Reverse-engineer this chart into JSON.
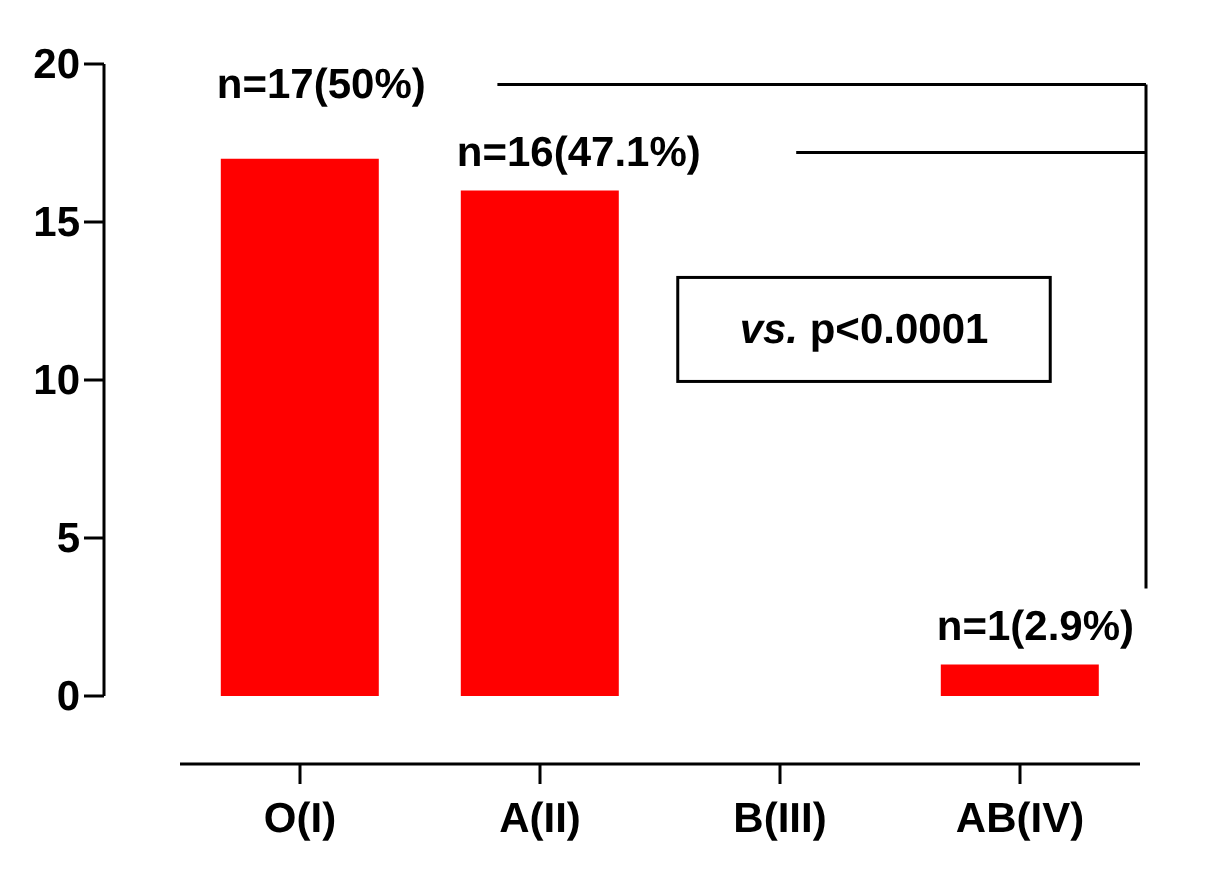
{
  "chart_data": {
    "type": "bar",
    "categories": [
      "O(I)",
      "A(II)",
      "B(III)",
      "AB(IV)"
    ],
    "values": [
      17,
      16,
      0,
      1
    ],
    "value_labels": [
      "n=17(50%)",
      "n=16(47.1%)",
      null,
      "n=1(2.9%)"
    ],
    "color": "#ff0000",
    "ylim": [
      0,
      20
    ],
    "yticks": [
      0,
      5,
      10,
      15,
      20
    ],
    "annotations": [
      "vs. p<0.0001"
    ]
  }
}
